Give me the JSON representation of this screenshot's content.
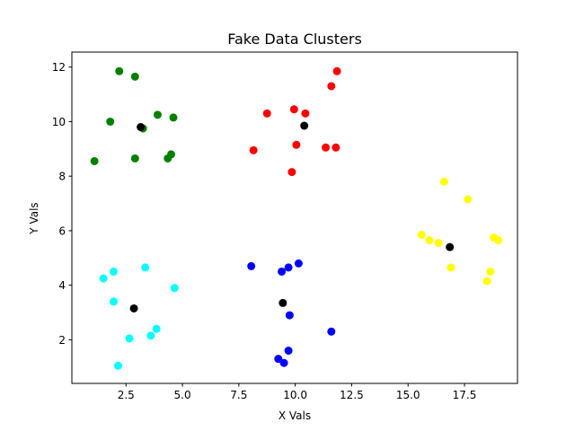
{
  "chart_data": {
    "type": "scatter",
    "title": "Fake Data Clusters",
    "xlabel": "X Vals",
    "ylabel": "Y Vals",
    "xlim": [
      0.1,
      19.85
    ],
    "ylim": [
      0.4,
      12.55
    ],
    "xticks": [
      2.5,
      5.0,
      7.5,
      10.0,
      12.5,
      15.0,
      17.5
    ],
    "xtick_labels": [
      "2.5",
      "5.0",
      "7.5",
      "10.0",
      "12.5",
      "15.0",
      "17.5"
    ],
    "yticks": [
      2,
      4,
      6,
      8,
      10,
      12
    ],
    "ytick_labels": [
      "2",
      "4",
      "6",
      "8",
      "10",
      "12"
    ],
    "grid": false,
    "series": [
      {
        "color": "#008000",
        "points": [
          [
            2.2,
            11.85
          ],
          [
            2.9,
            11.65
          ],
          [
            1.8,
            10.0
          ],
          [
            3.9,
            10.25
          ],
          [
            4.6,
            10.15
          ],
          [
            3.25,
            9.75
          ],
          [
            2.9,
            8.65
          ],
          [
            4.35,
            8.65
          ],
          [
            4.5,
            8.8
          ],
          [
            1.1,
            8.55
          ]
        ]
      },
      {
        "color": "#ff0000",
        "points": [
          [
            11.85,
            11.85
          ],
          [
            11.6,
            11.3
          ],
          [
            8.75,
            10.3
          ],
          [
            9.95,
            10.45
          ],
          [
            10.45,
            10.3
          ],
          [
            8.15,
            8.95
          ],
          [
            10.05,
            9.15
          ],
          [
            11.35,
            9.05
          ],
          [
            11.8,
            9.05
          ],
          [
            9.85,
            8.15
          ]
        ]
      },
      {
        "color": "#ffff00",
        "points": [
          [
            16.6,
            7.8
          ],
          [
            17.65,
            7.15
          ],
          [
            15.6,
            5.85
          ],
          [
            15.95,
            5.65
          ],
          [
            16.35,
            5.55
          ],
          [
            18.8,
            5.75
          ],
          [
            19.0,
            5.65
          ],
          [
            16.9,
            4.65
          ],
          [
            18.65,
            4.5
          ],
          [
            18.5,
            4.15
          ]
        ]
      },
      {
        "color": "#00ffff",
        "points": [
          [
            1.95,
            4.5
          ],
          [
            1.5,
            4.25
          ],
          [
            3.35,
            4.65
          ],
          [
            4.65,
            3.9
          ],
          [
            1.95,
            3.4
          ],
          [
            3.85,
            2.4
          ],
          [
            3.6,
            2.15
          ],
          [
            2.65,
            2.05
          ],
          [
            2.15,
            1.05
          ]
        ]
      },
      {
        "color": "#0000ff",
        "points": [
          [
            8.05,
            4.7
          ],
          [
            9.4,
            4.5
          ],
          [
            9.7,
            4.65
          ],
          [
            10.15,
            4.8
          ],
          [
            9.75,
            2.9
          ],
          [
            11.6,
            2.3
          ],
          [
            9.7,
            1.6
          ],
          [
            9.25,
            1.3
          ],
          [
            9.5,
            1.15
          ]
        ]
      },
      {
        "color": "#000000",
        "points": [
          [
            3.15,
            9.8
          ],
          [
            10.4,
            9.85
          ],
          [
            16.85,
            5.4
          ],
          [
            2.85,
            3.15
          ],
          [
            9.45,
            3.35
          ]
        ]
      }
    ]
  }
}
